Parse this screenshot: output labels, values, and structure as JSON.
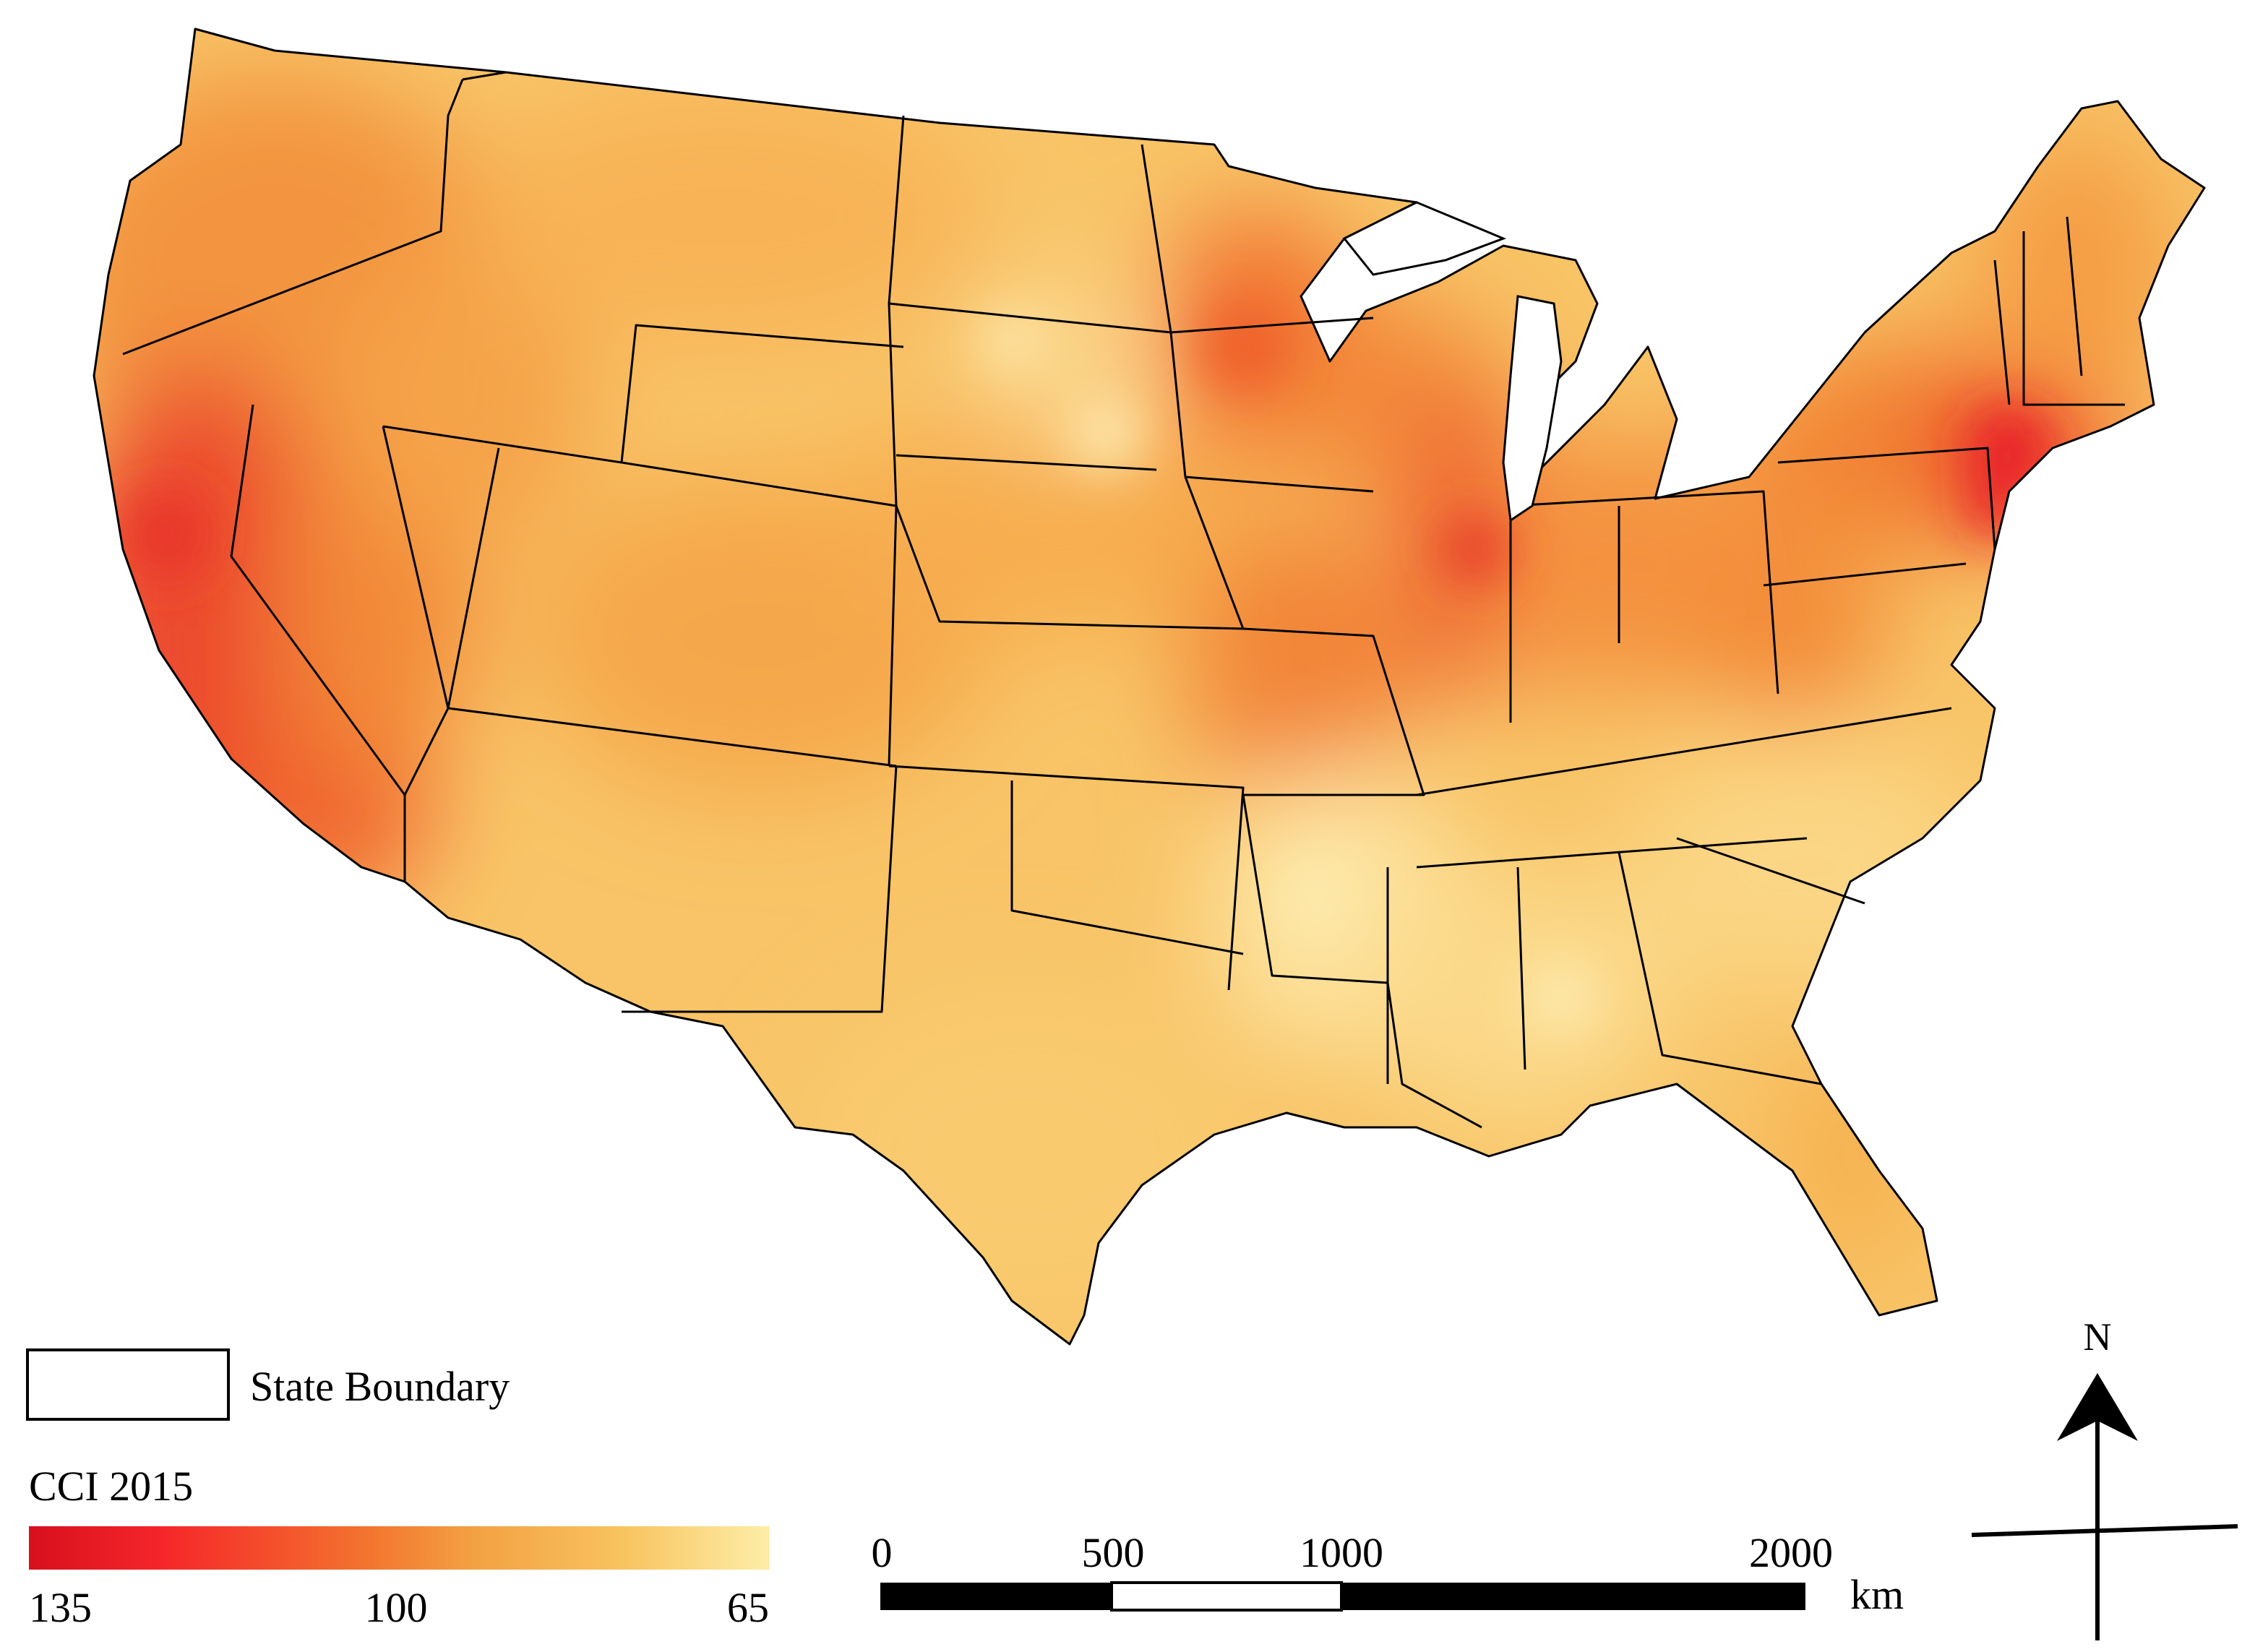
{
  "legend": {
    "boundary_label": "State Boundary",
    "index_title": "CCI 2015",
    "ramp_labels": [
      "135",
      "100",
      "65"
    ],
    "ramp_values": [
      135,
      100,
      65
    ],
    "ramp_colors": [
      "#d7101e",
      "#f5262a",
      "#f3722e",
      "#f3a142",
      "#f8c35f",
      "#fdeea8"
    ]
  },
  "scale_bar": {
    "ticks": [
      "0",
      "500",
      "1000",
      "2000"
    ],
    "tick_values_km": [
      0,
      500,
      1000,
      2000
    ],
    "unit": "km"
  },
  "north_arrow": {
    "label": "N"
  },
  "colors": {
    "base_fill": "#f8c467",
    "high": "#e8242b",
    "medium_high": "#f37a32",
    "medium": "#f39b43",
    "low": "#fde6a0",
    "state_boundary": "#000000"
  }
}
